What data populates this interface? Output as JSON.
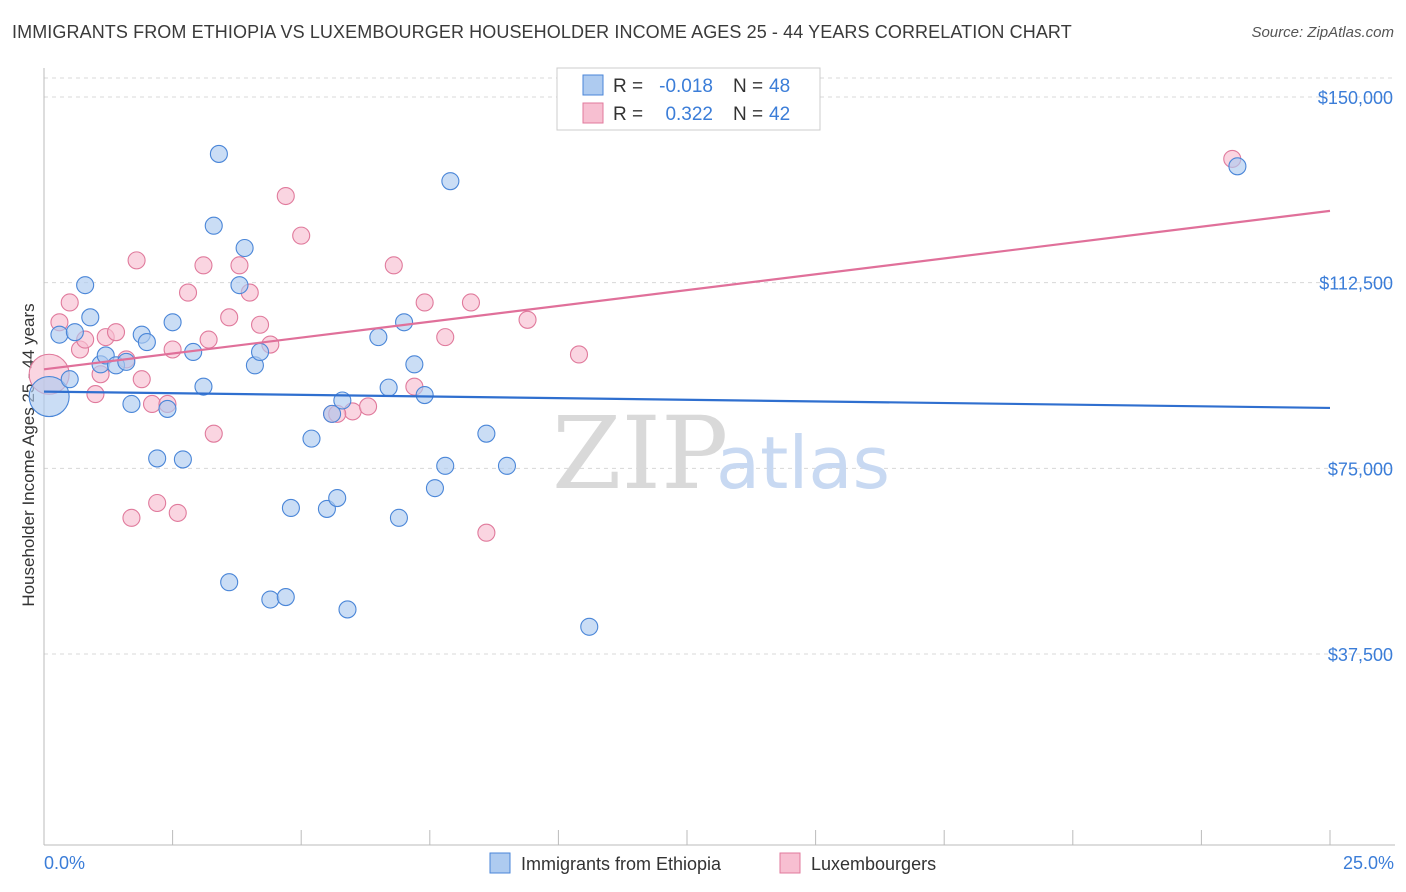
{
  "title": "IMMIGRANTS FROM ETHIOPIA VS LUXEMBOURGER HOUSEHOLDER INCOME AGES 25 - 44 YEARS CORRELATION CHART",
  "source": "Source: ZipAtlas.com",
  "watermark": {
    "zip": "ZIP",
    "atlas": "atlas"
  },
  "colors": {
    "ethiopia_fill": "#aecbf0",
    "ethiopia_stroke": "#4a86d8",
    "ethiopia_line": "#2f6fcf",
    "lux_fill": "#f7bfd1",
    "lux_stroke": "#e07a9c",
    "lux_line": "#e0709a",
    "grid": "#d8d8d8",
    "axis": "#bbbbbb"
  },
  "legend_top": [
    {
      "r_label": "R =",
      "r_value": "-0.018",
      "n_label": "N =",
      "n_value": "48"
    },
    {
      "r_label": "R =",
      "r_value": "0.322",
      "n_label": "N =",
      "n_value": "42"
    }
  ],
  "chart_data": {
    "type": "scatter",
    "title": "IMMIGRANTS FROM ETHIOPIA VS LUXEMBOURGER HOUSEHOLDER INCOME AGES 25 - 44 YEARS CORRELATION CHART",
    "xlabel": "",
    "ylabel": "Householder Income Ages 25 - 44 years",
    "xlim": [
      0,
      25
    ],
    "ylim": [
      0,
      155000
    ],
    "x_tick_labels": {
      "min": "0.0%",
      "max": "25.0%"
    },
    "y_ticks": [
      {
        "value": 150000,
        "label": "$150,000"
      },
      {
        "value": 112500,
        "label": "$112,500"
      },
      {
        "value": 75000,
        "label": "$75,000"
      },
      {
        "value": 37500,
        "label": "$37,500"
      }
    ],
    "series": [
      {
        "name": "Immigrants from Ethiopia",
        "trend": {
          "x": [
            0,
            25
          ],
          "y": [
            90500,
            87200
          ]
        },
        "points": [
          [
            0.1,
            89500,
            "big"
          ],
          [
            0.3,
            102000
          ],
          [
            0.5,
            93000
          ],
          [
            0.6,
            102500
          ],
          [
            0.8,
            112000
          ],
          [
            0.9,
            105500
          ],
          [
            1.1,
            96000
          ],
          [
            1.2,
            97800
          ],
          [
            1.4,
            95800
          ],
          [
            1.6,
            96500
          ],
          [
            1.7,
            88000
          ],
          [
            1.9,
            102000
          ],
          [
            2.0,
            100500
          ],
          [
            2.2,
            77000
          ],
          [
            2.4,
            87000
          ],
          [
            2.5,
            104500
          ],
          [
            2.7,
            76800
          ],
          [
            2.9,
            98500
          ],
          [
            3.1,
            91500
          ],
          [
            3.3,
            124000
          ],
          [
            3.4,
            138500
          ],
          [
            3.6,
            52000
          ],
          [
            3.8,
            112000
          ],
          [
            3.9,
            119500
          ],
          [
            4.1,
            95800
          ],
          [
            4.2,
            98500
          ],
          [
            4.4,
            48500
          ],
          [
            4.7,
            49000
          ],
          [
            4.8,
            67000
          ],
          [
            5.2,
            81000
          ],
          [
            5.5,
            66800
          ],
          [
            5.6,
            86000
          ],
          [
            5.7,
            69000
          ],
          [
            5.8,
            88700
          ],
          [
            5.9,
            46500
          ],
          [
            6.5,
            101500
          ],
          [
            6.7,
            91300
          ],
          [
            6.9,
            65000
          ],
          [
            7.0,
            104500
          ],
          [
            7.2,
            96000
          ],
          [
            7.4,
            89800
          ],
          [
            7.6,
            71000
          ],
          [
            7.8,
            75500
          ],
          [
            7.9,
            133000
          ],
          [
            8.6,
            82000
          ],
          [
            9.0,
            75500
          ],
          [
            10.6,
            43000
          ],
          [
            23.2,
            136000
          ]
        ]
      },
      {
        "name": "Luxembourgers",
        "trend": {
          "x": [
            0,
            25
          ],
          "y": [
            95000,
            127000
          ]
        },
        "points": [
          [
            0.1,
            94000,
            "big"
          ],
          [
            0.3,
            104500
          ],
          [
            0.5,
            108500
          ],
          [
            0.7,
            99000
          ],
          [
            0.8,
            101000
          ],
          [
            1.0,
            90000
          ],
          [
            1.1,
            94000
          ],
          [
            1.2,
            101500
          ],
          [
            1.4,
            102500
          ],
          [
            1.6,
            97000
          ],
          [
            1.8,
            117000
          ],
          [
            1.9,
            93000
          ],
          [
            2.1,
            88000
          ],
          [
            2.2,
            68000
          ],
          [
            2.4,
            88000
          ],
          [
            2.5,
            99000
          ],
          [
            2.8,
            110500
          ],
          [
            3.1,
            116000
          ],
          [
            3.2,
            101000
          ],
          [
            3.3,
            82000
          ],
          [
            3.6,
            105500
          ],
          [
            3.8,
            116000
          ],
          [
            4.0,
            110500
          ],
          [
            4.2,
            104000
          ],
          [
            4.4,
            100000
          ],
          [
            4.7,
            130000
          ],
          [
            5.0,
            122000
          ],
          [
            5.6,
            86000
          ],
          [
            6.0,
            86500
          ],
          [
            6.8,
            116000
          ],
          [
            7.2,
            91500
          ],
          [
            7.4,
            108500
          ],
          [
            7.8,
            101500
          ],
          [
            8.3,
            108500
          ],
          [
            8.6,
            62000
          ],
          [
            9.4,
            105000
          ],
          [
            10.4,
            98000
          ],
          [
            23.1,
            137500
          ],
          [
            1.7,
            65000
          ],
          [
            2.6,
            66000
          ],
          [
            5.7,
            86000
          ],
          [
            6.3,
            87500
          ]
        ]
      }
    ],
    "legend": [
      "Immigrants from Ethiopia",
      "Luxembourgers"
    ]
  }
}
